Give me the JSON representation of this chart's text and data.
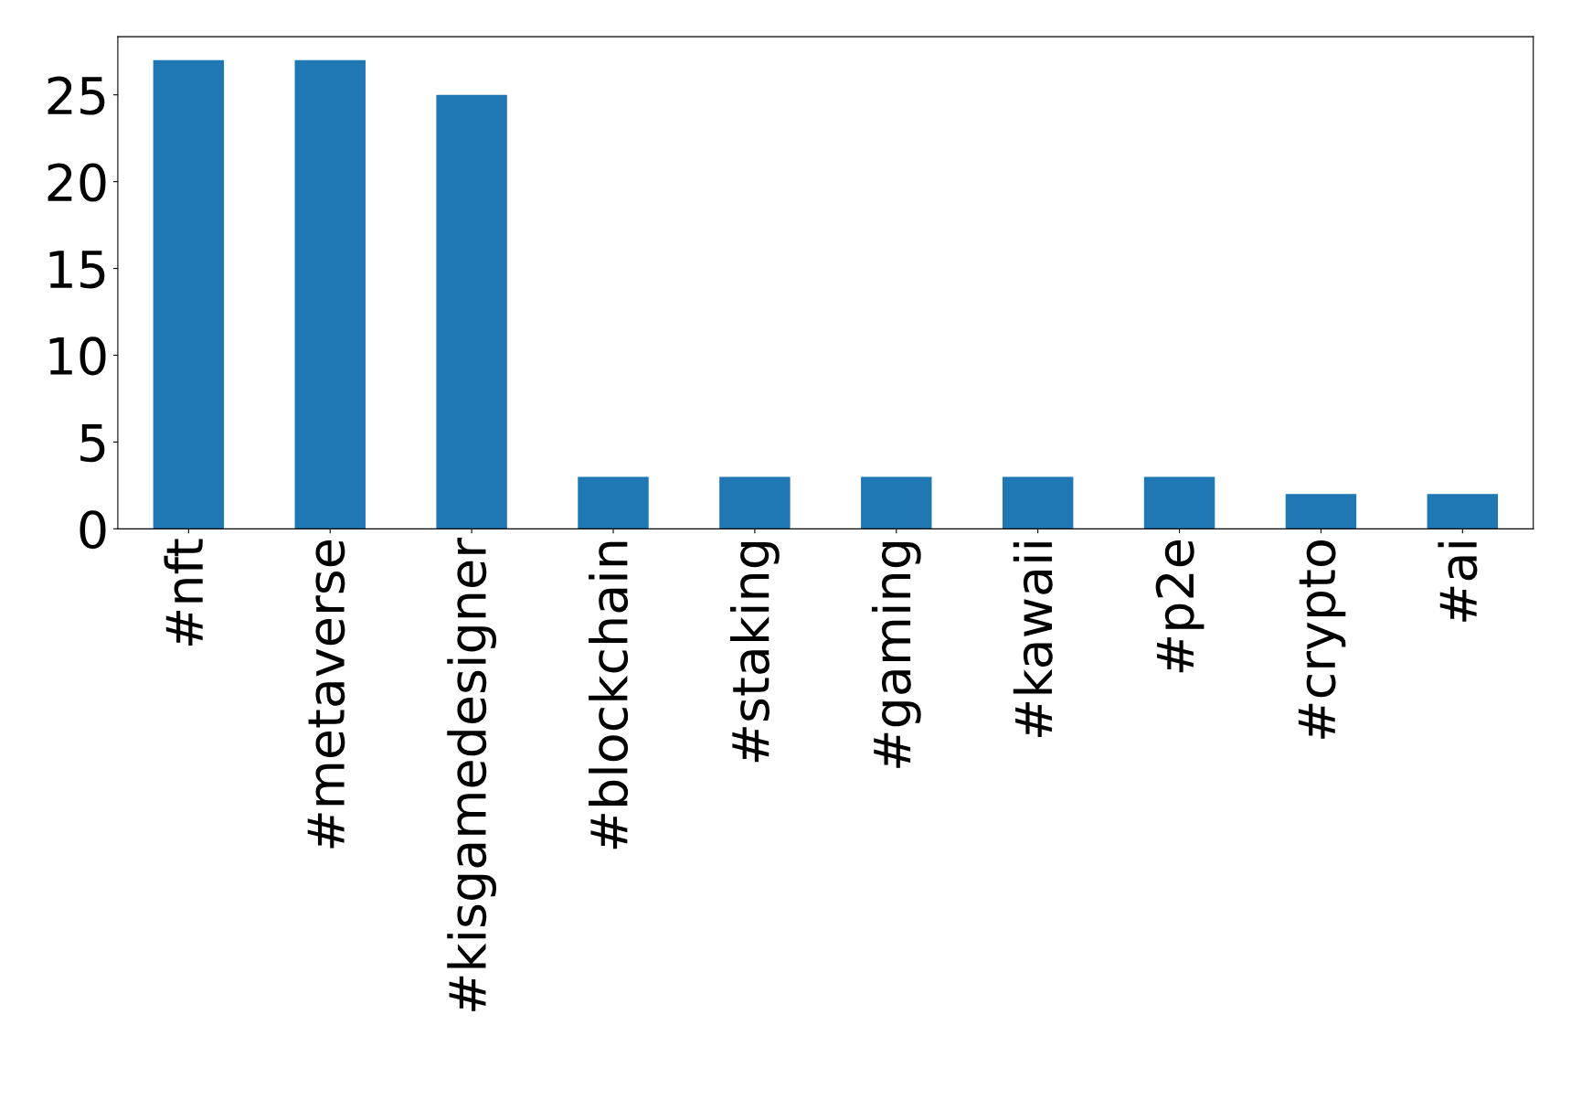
{
  "chart_data": {
    "type": "bar",
    "categories": [
      "#nft",
      "#metaverse",
      "#kisgamedesigner",
      "#blockchain",
      "#staking",
      "#gaming",
      "#kawaii",
      "#p2e",
      "#crypto",
      "#ai"
    ],
    "values": [
      27,
      27,
      25,
      3,
      3,
      3,
      3,
      3,
      2,
      2
    ],
    "color": "#1f77b4",
    "ylim": [
      0,
      28.35
    ],
    "yticks": [
      0,
      5,
      10,
      15,
      20,
      25
    ],
    "grid": false,
    "legend": false
  }
}
